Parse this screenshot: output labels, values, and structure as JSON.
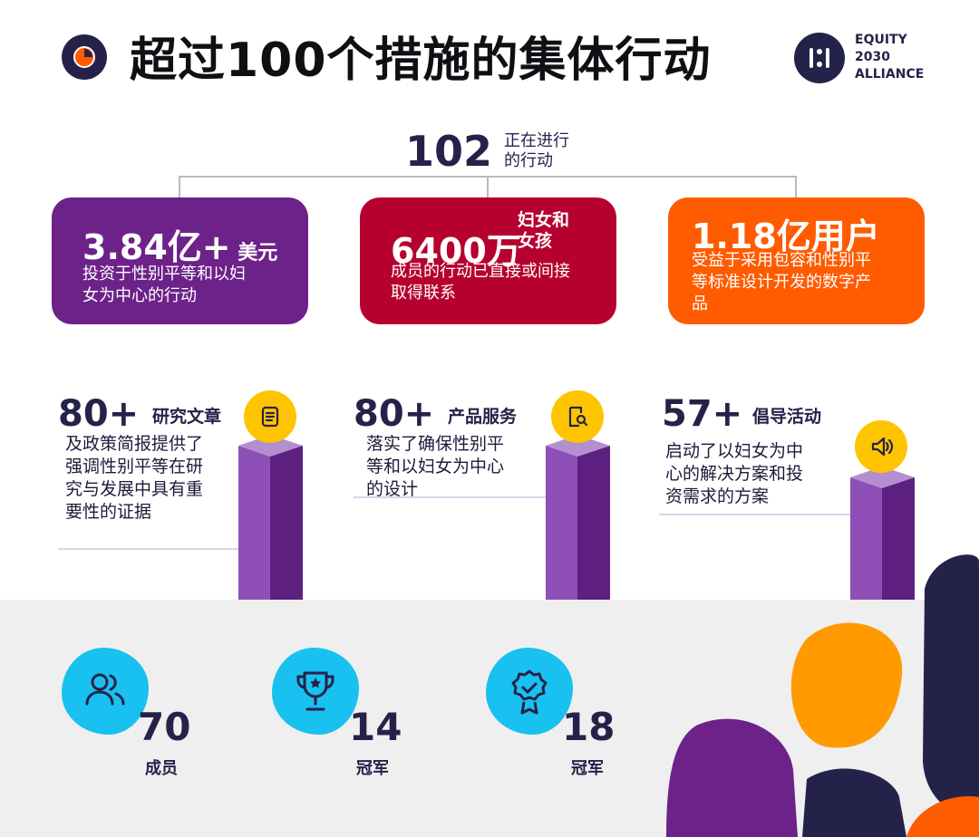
{
  "header": {
    "title": "超过100个措施的集体行动",
    "logo_lines": [
      "EQUITY",
      "2030",
      "ALLIANCE"
    ]
  },
  "total": {
    "value": "102",
    "label_line1": "正在进行",
    "label_line2": "的行动"
  },
  "cards": [
    {
      "value": "3.84亿+",
      "unit": " 美元",
      "desc_lines": [
        "投资于性别平等和以妇",
        "女为中心的行动"
      ],
      "color": "#6d2289"
    },
    {
      "value": "6400万",
      "unit_line1": "妇女和",
      "unit_line2": "女孩",
      "desc_lines": [
        "成员的行动已直接或间接",
        "取得联系"
      ],
      "color": "#b6002e"
    },
    {
      "value": "1.18亿用户",
      "desc_lines": [
        "受益于采用包容和性别平",
        "等标准设计开发的数字产",
        "品"
      ],
      "color": "#ff5b00"
    }
  ],
  "stats": [
    {
      "value": "80+",
      "label": "研究文章",
      "desc_lines": [
        "及政策简报提供了",
        "强调性别平等在研",
        "究与发展中具有重",
        "要性的证据"
      ],
      "icon": "document-icon"
    },
    {
      "value": "80+",
      "label": "产品服务",
      "desc_lines": [
        "落实了确保性别平",
        "等和以妇女为中心",
        "的设计"
      ],
      "icon": "search-document-icon"
    },
    {
      "value": "57+",
      "label": "倡导活动",
      "desc_lines": [
        "启动了以妇女为中",
        "心的解决方案和投",
        "资需求的方案"
      ],
      "icon": "speaker-icon"
    }
  ],
  "bottom": [
    {
      "value": "70",
      "label": "成员",
      "icon": "people-icon"
    },
    {
      "value": "14",
      "label": "冠军",
      "icon": "trophy-icon"
    },
    {
      "value": "18",
      "label": "冠军",
      "icon": "award-badge-icon"
    }
  ],
  "colors": {
    "navy": "#25224a",
    "purple": "#6d2289",
    "crimson": "#b6002e",
    "orange": "#ff5b00",
    "yellow": "#ffc400",
    "cyan": "#18c1ef"
  }
}
